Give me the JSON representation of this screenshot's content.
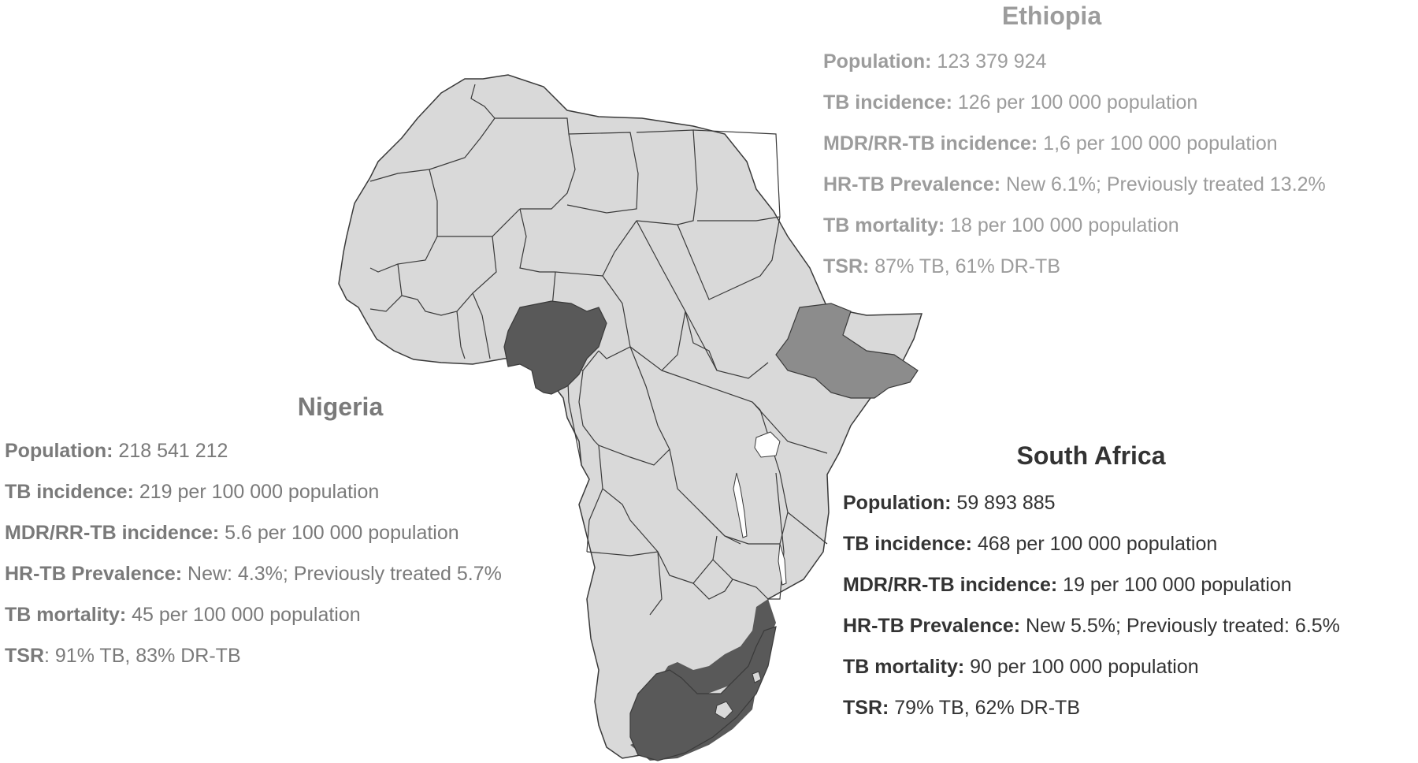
{
  "colors": {
    "land": "#d9d9d9",
    "border": "#3a3a3a",
    "nigeria_fill": "#595959",
    "ethiopia_fill": "#8c8c8c",
    "southafrica_fill": "#595959",
    "lake": "#ffffff"
  },
  "ethiopia": {
    "title": "Ethiopia",
    "rows": [
      {
        "key": "Population:",
        "value": " 123 379 924"
      },
      {
        "key": "TB incidence:",
        "value": " 126 per 100 000 population"
      },
      {
        "key": "MDR/RR-TB  incidence:",
        "value": " 1,6 per 100 000 population"
      },
      {
        "key": "HR-TB Prevalence:",
        "value": " New 6.1%; Previously  treated 13.2%"
      },
      {
        "key": "TB mortality:",
        "value": " 18 per 100 000 population"
      },
      {
        "key": "TSR:",
        "value": " 87% TB, 61% DR-TB"
      }
    ]
  },
  "nigeria": {
    "title": "Nigeria",
    "rows": [
      {
        "key": "Population:",
        "value": " 218 541 212"
      },
      {
        "key": "TB incidence:",
        "value": " 219 per 100 000 population"
      },
      {
        "key": "MDR/RR-TB incidence:",
        "value": " 5.6 per 100 000 population"
      },
      {
        "key": "HR-TB Prevalence:",
        "value": " New: 4.3%; Previously  treated 5.7%"
      },
      {
        "key": "TB mortality:",
        "value": " 45 per 100 000 population"
      },
      {
        "key": "TSR",
        "value": ": 91% TB, 83% DR-TB"
      }
    ]
  },
  "south_africa": {
    "title": "South Africa",
    "rows": [
      {
        "key": "Population:",
        "value": " 59 893 885"
      },
      {
        "key": "TB incidence:",
        "value": " 468 per 100 000 population"
      },
      {
        "key": "MDR/RR-TB  incidence:",
        "value": " 19 per 100 000 population"
      },
      {
        "key": "HR-TB Prevalence:",
        "value": " New 5.5%; Previously  treated: 6.5%"
      },
      {
        "key": "TB mortality:",
        "value": " 90 per 100 000 population"
      },
      {
        "key": "TSR:",
        "value": " 79% TB,  62% DR-TB"
      }
    ]
  }
}
